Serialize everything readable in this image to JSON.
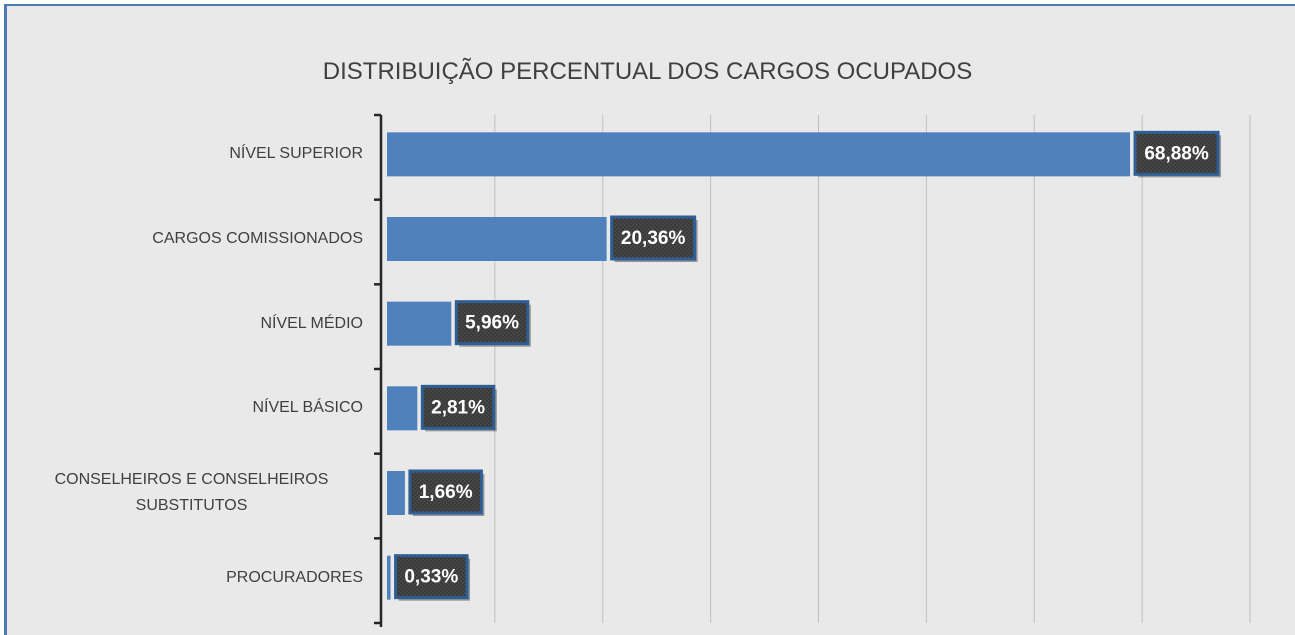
{
  "chart_data": {
    "type": "barh",
    "title": "DISTRIBUIÇÃO PERCENTUAL DOS CARGOS OCUPADOS",
    "categories": [
      "NÍVEL SUPERIOR",
      "CARGOS COMISSIONADOS",
      "NÍVEL MÉDIO",
      "NÍVEL BÁSICO",
      "CONSELHEIROS E CONSELHEIROS SUBSTITUTOS",
      "PROCURADORES"
    ],
    "values": [
      68.88,
      20.36,
      5.96,
      2.81,
      1.66,
      0.33
    ],
    "value_labels": [
      "68,88%",
      "20,36%",
      "5,96%",
      "2,81%",
      "1,66%",
      "0,33%"
    ],
    "color": "#4f81bd",
    "xlim": [
      0,
      80
    ],
    "xgrid": [
      10,
      20,
      30,
      40,
      50,
      60,
      70,
      80
    ],
    "grid": true
  }
}
